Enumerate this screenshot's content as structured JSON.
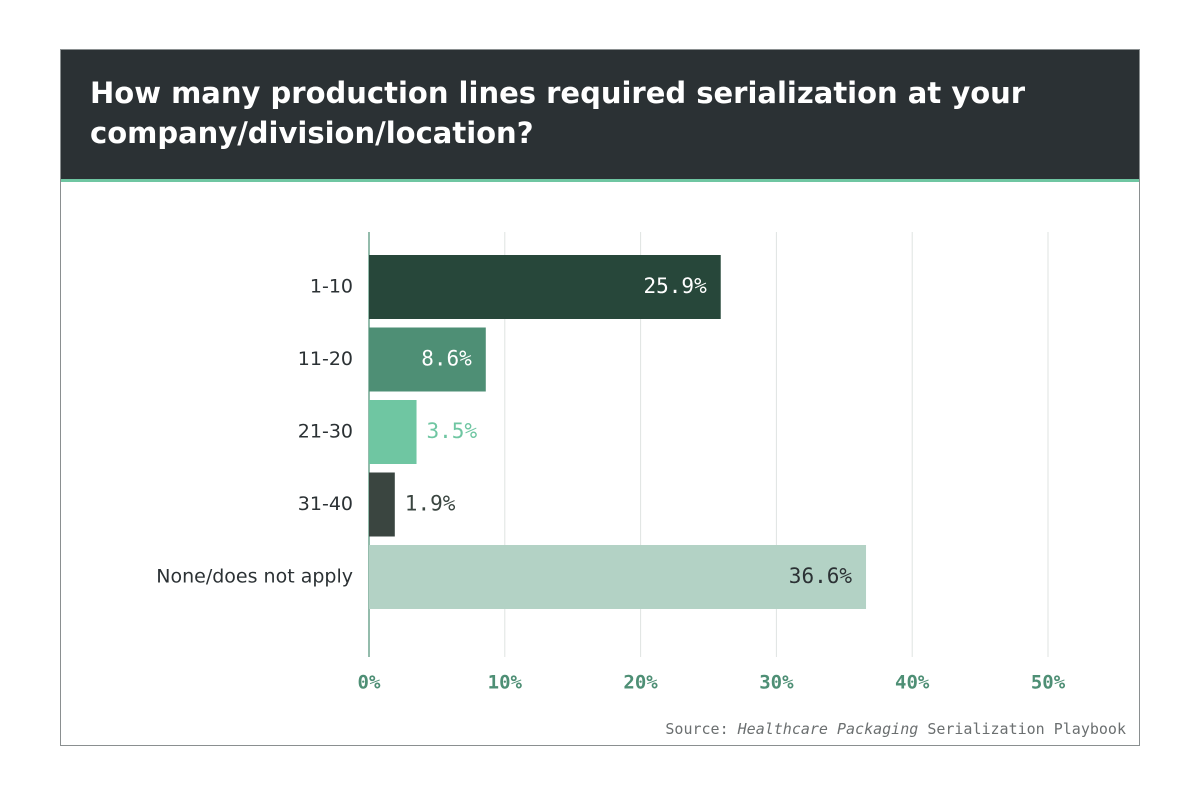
{
  "chart_data": {
    "type": "bar",
    "orientation": "horizontal",
    "title": [
      "How many production lines required serialization at your",
      "company/division/location?"
    ],
    "categories": [
      "1-10",
      "11-20",
      "21-30",
      "31-40",
      "None/does not apply"
    ],
    "values": [
      25.9,
      8.6,
      3.5,
      1.9,
      36.6
    ],
    "value_labels": [
      "25.9%",
      "8.6%",
      "3.5%",
      "1.9%",
      "36.6%"
    ],
    "colors": [
      "#27473a",
      "#4e8f75",
      "#6fc6a2",
      "#3a4540",
      "#b3d2c5"
    ],
    "xlim": [
      0,
      50
    ],
    "xticks": [
      {
        "value": 0,
        "label": "0%"
      },
      {
        "value": 10,
        "label": "10%"
      },
      {
        "value": 20,
        "label": "20%"
      },
      {
        "value": 30,
        "label": "30%"
      },
      {
        "value": 40,
        "label": "40%"
      },
      {
        "value": 50,
        "label": "50%"
      }
    ],
    "grid": true,
    "source": {
      "prefix": "Source:",
      "publication": "Healthcare Packaging",
      "title": "Serialization Playbook"
    }
  }
}
